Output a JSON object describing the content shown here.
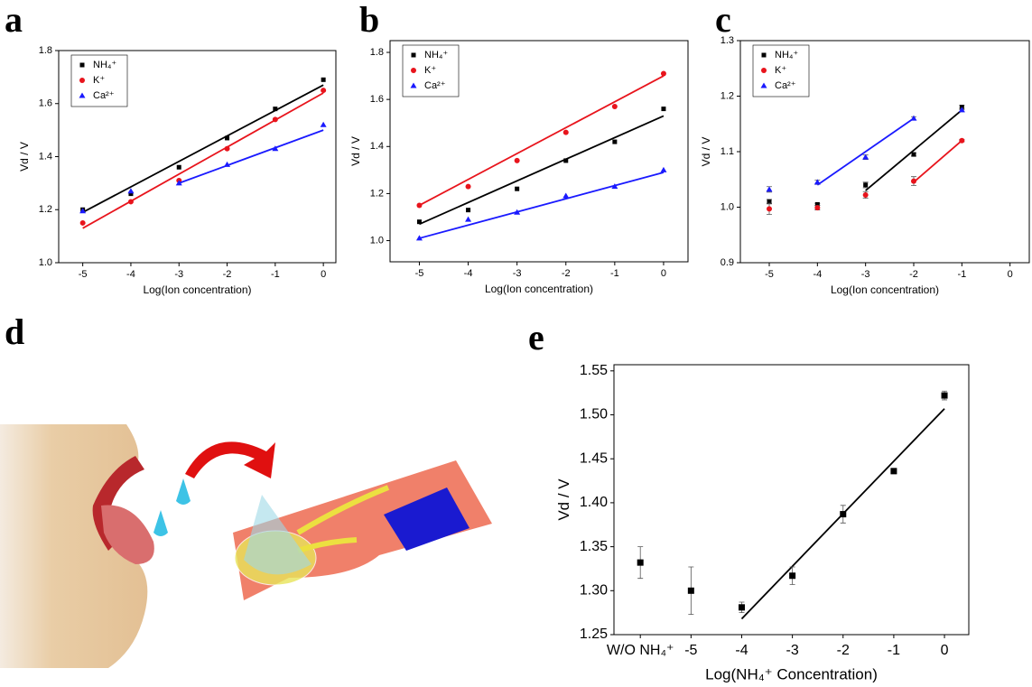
{
  "chart_data": [
    {
      "type": "scatter",
      "label": "a",
      "xlabel": "Log(Ion concentration)",
      "ylabel": "Vd / V",
      "x": [
        -5,
        -4,
        -3,
        -2,
        -1,
        0
      ],
      "xlim": [
        -5.5,
        0.26
      ],
      "ylim": [
        1.0,
        1.8
      ],
      "xticks": [
        -5,
        -4,
        -3,
        -2,
        -1,
        0
      ],
      "yticks": [
        {
          "value": 1.0,
          "label": "1.0"
        },
        {
          "value": 1.2,
          "label": "1.2"
        },
        {
          "value": 1.4,
          "label": "1.4"
        },
        {
          "value": 1.6,
          "label": "1.6"
        },
        {
          "value": 1.8,
          "label": "1.8"
        }
      ],
      "legend": "upper left",
      "series": [
        {
          "name": "NH₄⁺",
          "color": "#000000",
          "marker": "square",
          "values": [
            1.2,
            1.26,
            1.36,
            1.47,
            1.58,
            1.69
          ],
          "fit": {
            "x": [
              -5,
              0
            ],
            "y": [
              1.19,
              1.67
            ]
          }
        },
        {
          "name": "K⁺",
          "color": "#e8141c",
          "marker": "circle",
          "values": [
            1.15,
            1.23,
            1.31,
            1.43,
            1.54,
            1.65
          ],
          "fit": {
            "x": [
              -5,
              0
            ],
            "y": [
              1.13,
              1.64
            ]
          }
        },
        {
          "name": "Ca²⁺",
          "color": "#1a1aff",
          "marker": "triangle",
          "values": [
            1.195,
            1.27,
            1.3,
            1.37,
            1.43,
            1.52
          ],
          "fit": {
            "x": [
              -3,
              0
            ],
            "y": [
              1.3,
              1.5
            ]
          }
        }
      ]
    },
    {
      "type": "scatter",
      "label": "b",
      "xlabel": "Log(Ion concentration)",
      "ylabel": "Vd / V",
      "x": [
        -5,
        -4,
        -3,
        -2,
        -1,
        0
      ],
      "xlim": [
        -5.6,
        0.5
      ],
      "ylim": [
        0.91,
        1.85
      ],
      "xticks": [
        -5,
        -4,
        -3,
        -2,
        -1,
        0
      ],
      "yticks": [
        {
          "value": 1.0,
          "label": "1.0"
        },
        {
          "value": 1.2,
          "label": "1.2"
        },
        {
          "value": 1.4,
          "label": "1.4"
        },
        {
          "value": 1.6,
          "label": "1.6"
        },
        {
          "value": 1.8,
          "label": "1.8"
        }
      ],
      "legend": "upper left",
      "series": [
        {
          "name": "NH₄⁺",
          "color": "#000000",
          "marker": "square",
          "values": [
            1.08,
            1.13,
            1.22,
            1.34,
            1.42,
            1.56
          ],
          "fit": {
            "x": [
              -5,
              0
            ],
            "y": [
              1.07,
              1.53
            ]
          }
        },
        {
          "name": "K⁺",
          "color": "#e8141c",
          "marker": "circle",
          "values": [
            1.15,
            1.23,
            1.34,
            1.46,
            1.57,
            1.71
          ],
          "fit": {
            "x": [
              -5,
              0
            ],
            "y": [
              1.15,
              1.7
            ]
          }
        },
        {
          "name": "Ca²⁺",
          "color": "#1a1aff",
          "marker": "triangle",
          "values": [
            1.01,
            1.09,
            1.12,
            1.19,
            1.23,
            1.3
          ],
          "fit": {
            "x": [
              -5,
              0
            ],
            "y": [
              1.01,
              1.29
            ]
          }
        }
      ]
    },
    {
      "type": "scatter",
      "label": "c",
      "xlabel": "Log(Ion concentration)",
      "ylabel": "Vd / V",
      "x": [
        -5,
        -4,
        -3,
        -2,
        -1
      ],
      "xlim": [
        -5.6,
        0.4
      ],
      "ylim": [
        0.9,
        1.3
      ],
      "xticks": [
        -5,
        -4,
        -3,
        -2,
        -1,
        0
      ],
      "yticks": [
        0.9,
        {
          "value": 1.0,
          "label": "1.0"
        },
        1.1,
        1.2,
        1.3
      ],
      "legend": "upper left",
      "series": [
        {
          "name": "NH₄⁺",
          "color": "#000000",
          "marker": "square",
          "values": [
            1.01,
            1.005,
            1.04,
            1.095,
            1.18
          ],
          "errors": [
            0.004,
            0.002,
            0.005,
            0.003,
            0.004
          ],
          "fit": {
            "x": [
              -3,
              -1
            ],
            "y": [
              1.03,
              1.175
            ]
          }
        },
        {
          "name": "K⁺",
          "color": "#e8141c",
          "marker": "circle",
          "values": [
            0.997,
            0.999,
            1.022,
            1.047,
            1.12
          ],
          "errors": [
            0.01,
            0.004,
            0.006,
            0.008,
            0.002
          ],
          "fit": {
            "x": [
              -2,
              -1
            ],
            "y": [
              1.045,
              1.12
            ]
          }
        },
        {
          "name": "Ca²⁺",
          "color": "#1a1aff",
          "marker": "triangle",
          "values": [
            1.032,
            1.045,
            1.09,
            1.16,
            1.175
          ],
          "errors": [
            0.005,
            0.004,
            0.004,
            0.003,
            0.003
          ],
          "fit": {
            "x": [
              -4,
              -2
            ],
            "y": [
              1.04,
              1.16
            ]
          }
        }
      ]
    },
    {
      "type": "scatter",
      "label": "e",
      "xlabel": "Log(NH₄⁺ Concentration)",
      "ylabel": "Vd / V",
      "x": [
        -6,
        -5,
        -4,
        -3,
        -2,
        -1,
        0
      ],
      "xlim": [
        -6.52,
        0.48
      ],
      "ylim": [
        1.25,
        1.557
      ],
      "xticks": [
        {
          "value": -6,
          "label": "W/O NH₄⁺"
        },
        -5,
        -4,
        -3,
        -2,
        -1,
        0
      ],
      "yticks": [
        1.25,
        {
          "value": 1.3,
          "label": "1.30"
        },
        1.35,
        {
          "value": 1.4,
          "label": "1.40"
        },
        1.45,
        {
          "value": 1.5,
          "label": "1.50"
        },
        1.55
      ],
      "series": [
        {
          "color": "#000000",
          "marker": "square",
          "values": [
            1.332,
            1.3,
            1.281,
            1.317,
            1.387,
            1.436,
            1.522
          ],
          "errors": [
            0.018,
            0.027,
            0.006,
            0.01,
            0.01,
            0.003,
            0.005
          ],
          "fit": {
            "x": [
              -4,
              0
            ],
            "y": [
              1.268,
              1.507
            ]
          }
        }
      ]
    }
  ],
  "illustration": {
    "label": "d"
  }
}
